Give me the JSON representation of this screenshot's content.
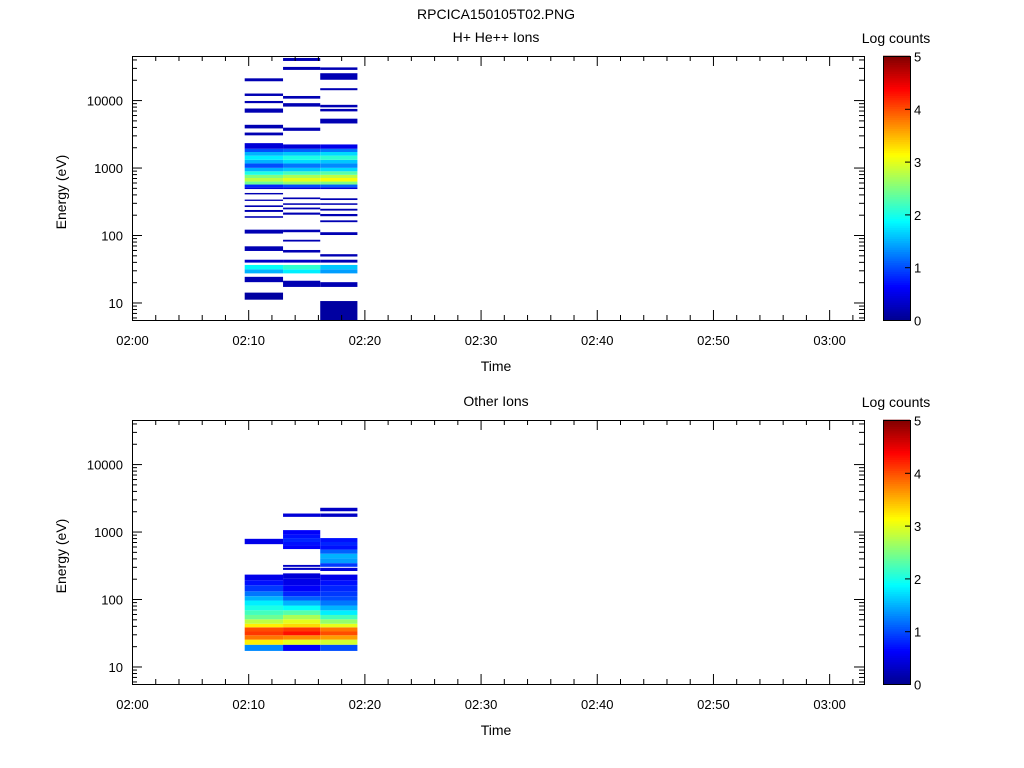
{
  "figure": {
    "title": "RPCICA150105T02.PNG"
  },
  "colors": {
    "colormap": [
      "#00008f",
      "#0000ff",
      "#0080ff",
      "#00ffff",
      "#80ff80",
      "#ffff00",
      "#ff8000",
      "#ff0000",
      "#800000"
    ]
  },
  "chart_data": [
    {
      "type": "heatmap",
      "title": "H+ He++ Ions",
      "xlabel": "Time",
      "ylabel": "Energy (eV)",
      "y_scale": "log",
      "xlim": [
        "02:00",
        "03:03"
      ],
      "ylim": [
        5.5,
        45000
      ],
      "x_ticks": [
        "02:00",
        "02:10",
        "02:20",
        "02:30",
        "02:40",
        "02:50",
        "03:00"
      ],
      "y_ticks": [
        "10",
        "100",
        "1000",
        "10000"
      ],
      "colorbar": {
        "label": "Log counts",
        "range": [
          0,
          5
        ],
        "ticks": [
          "0",
          "1",
          "2",
          "3",
          "4",
          "5"
        ]
      },
      "columns": [
        {
          "t_start": "02:09.7",
          "t_end": "02:13.0",
          "bins": [
            [
              11,
              14,
              0.1
            ],
            [
              20,
              24,
              0.2
            ],
            [
              27,
              31,
              1.5
            ],
            [
              31,
              36,
              1.9
            ],
            [
              39,
              43,
              0.3
            ],
            [
              58,
              68,
              0.2
            ],
            [
              105,
              120,
              0.2
            ],
            [
              180,
              190,
              0.2
            ],
            [
              220,
              235,
              0.2
            ],
            [
              260,
              275,
              0.2
            ],
            [
              320,
              335,
              0.2
            ],
            [
              400,
              420,
              0.2
            ],
            [
              480,
              510,
              0.4
            ],
            [
              510,
              560,
              0.8
            ],
            [
              560,
              620,
              2.4
            ],
            [
              620,
              700,
              2.8
            ],
            [
              700,
              780,
              2.5
            ],
            [
              780,
              880,
              2.0
            ],
            [
              880,
              990,
              1.5
            ],
            [
              990,
              1150,
              1.0
            ],
            [
              1150,
              1300,
              1.5
            ],
            [
              1300,
              1500,
              1.8
            ],
            [
              1500,
              1700,
              1.5
            ],
            [
              1700,
              1900,
              1.0
            ],
            [
              1900,
              2300,
              0.4
            ],
            [
              3000,
              3300,
              0.2
            ],
            [
              3800,
              4300,
              0.2
            ],
            [
              6500,
              7500,
              0.2
            ],
            [
              9000,
              9700,
              0.2
            ],
            [
              11500,
              12500,
              0.2
            ],
            [
              19000,
              21000,
              0.2
            ]
          ]
        },
        {
          "t_start": "02:13.0",
          "t_end": "02:16.2",
          "bins": [
            [
              17,
              21,
              0.2
            ],
            [
              27,
              31,
              1.8
            ],
            [
              31,
              36,
              2.1
            ],
            [
              39,
              43,
              0.3
            ],
            [
              55,
              60,
              0.2
            ],
            [
              80,
              85,
              0.2
            ],
            [
              110,
              120,
              0.2
            ],
            [
              200,
              215,
              0.2
            ],
            [
              240,
              255,
              0.2
            ],
            [
              280,
              295,
              0.2
            ],
            [
              340,
              360,
              0.2
            ],
            [
              480,
              510,
              0.4
            ],
            [
              510,
              560,
              1.0
            ],
            [
              560,
              620,
              2.6
            ],
            [
              620,
              700,
              3.0
            ],
            [
              700,
              780,
              2.7
            ],
            [
              780,
              880,
              2.2
            ],
            [
              880,
              990,
              1.6
            ],
            [
              990,
              1150,
              1.2
            ],
            [
              1150,
              1300,
              1.7
            ],
            [
              1300,
              1500,
              2.0
            ],
            [
              1500,
              1700,
              1.6
            ],
            [
              1700,
              1900,
              1.1
            ],
            [
              1900,
              2200,
              0.4
            ],
            [
              3500,
              3900,
              0.2
            ],
            [
              8000,
              9000,
              0.2
            ],
            [
              10500,
              11500,
              0.2
            ],
            [
              28000,
              31000,
              0.2
            ],
            [
              38000,
              42000,
              0.2
            ]
          ]
        },
        {
          "t_start": "02:16.2",
          "t_end": "02:19.4",
          "bins": [
            [
              5.5,
              10.5,
              0.1
            ],
            [
              17,
              20,
              0.2
            ],
            [
              27,
              31,
              1.4
            ],
            [
              31,
              36,
              1.6
            ],
            [
              39,
              43,
              0.2
            ],
            [
              48,
              52,
              0.2
            ],
            [
              100,
              110,
              0.2
            ],
            [
              155,
              165,
              0.2
            ],
            [
              190,
              205,
              0.2
            ],
            [
              230,
              245,
              0.2
            ],
            [
              280,
              295,
              0.2
            ],
            [
              330,
              350,
              0.2
            ],
            [
              480,
              510,
              0.4
            ],
            [
              510,
              560,
              1.1
            ],
            [
              560,
              620,
              2.5
            ],
            [
              620,
              700,
              3.1
            ],
            [
              700,
              780,
              2.8
            ],
            [
              780,
              880,
              2.3
            ],
            [
              880,
              990,
              1.7
            ],
            [
              990,
              1150,
              1.3
            ],
            [
              1150,
              1300,
              1.6
            ],
            [
              1300,
              1500,
              2.1
            ],
            [
              1500,
              1700,
              1.7
            ],
            [
              1700,
              1900,
              1.2
            ],
            [
              1900,
              2200,
              0.5
            ],
            [
              4500,
              5300,
              0.2
            ],
            [
              6800,
              7400,
              0.2
            ],
            [
              7800,
              8500,
              0.2
            ],
            [
              14000,
              15000,
              0.2
            ],
            [
              20000,
              25000,
              0.2
            ],
            [
              28000,
              30500,
              0.2
            ]
          ]
        }
      ]
    },
    {
      "type": "heatmap",
      "title": "Other Ions",
      "xlabel": "Time",
      "ylabel": "Energy (eV)",
      "y_scale": "log",
      "xlim": [
        "02:00",
        "03:03"
      ],
      "ylim": [
        5.5,
        45000
      ],
      "x_ticks": [
        "02:00",
        "02:10",
        "02:20",
        "02:30",
        "02:40",
        "02:50",
        "03:00"
      ],
      "y_ticks": [
        "10",
        "100",
        "1000",
        "10000"
      ],
      "colorbar": {
        "label": "Log counts",
        "range": [
          0,
          5
        ],
        "ticks": [
          "0",
          "1",
          "2",
          "3",
          "4",
          "5"
        ]
      },
      "columns": [
        {
          "t_start": "02:09.7",
          "t_end": "02:13.0",
          "bins": [
            [
              17,
              21,
              1.3
            ],
            [
              21,
              25,
              3.2
            ],
            [
              25,
              29,
              3.8
            ],
            [
              29,
              33,
              4.1
            ],
            [
              33,
              38,
              4.0
            ],
            [
              38,
              43,
              3.2
            ],
            [
              43,
              50,
              2.8
            ],
            [
              50,
              58,
              2.4
            ],
            [
              58,
              68,
              2.2
            ],
            [
              68,
              80,
              2.0
            ],
            [
              80,
              95,
              1.8
            ],
            [
              95,
              110,
              1.5
            ],
            [
              110,
              130,
              1.2
            ],
            [
              130,
              160,
              0.9
            ],
            [
              160,
              190,
              0.7
            ],
            [
              190,
              230,
              0.5
            ],
            [
              650,
              780,
              0.5
            ]
          ]
        },
        {
          "t_start": "02:13.0",
          "t_end": "02:16.2",
          "bins": [
            [
              17,
              21,
              0.6
            ],
            [
              21,
              25,
              3.0
            ],
            [
              25,
              29,
              3.7
            ],
            [
              29,
              33,
              4.3
            ],
            [
              33,
              38,
              4.1
            ],
            [
              38,
              43,
              3.3
            ],
            [
              43,
              50,
              3.0
            ],
            [
              50,
              58,
              2.7
            ],
            [
              58,
              68,
              2.3
            ],
            [
              68,
              80,
              1.9
            ],
            [
              80,
              95,
              1.5
            ],
            [
              95,
              110,
              1.1
            ],
            [
              110,
              130,
              0.8
            ],
            [
              130,
              160,
              0.6
            ],
            [
              160,
              200,
              0.5
            ],
            [
              200,
              240,
              0.4
            ],
            [
              270,
              290,
              0.3
            ],
            [
              300,
              320,
              0.3
            ],
            [
              550,
              620,
              0.6
            ],
            [
              620,
              700,
              0.7
            ],
            [
              700,
              800,
              0.8
            ],
            [
              800,
              900,
              0.7
            ],
            [
              900,
              1050,
              0.6
            ],
            [
              1650,
              1850,
              0.4
            ]
          ]
        },
        {
          "t_start": "02:16.2",
          "t_end": "02:19.4",
          "bins": [
            [
              17,
              21,
              1.0
            ],
            [
              21,
              25,
              2.9
            ],
            [
              25,
              29,
              3.6
            ],
            [
              29,
              33,
              4.0
            ],
            [
              33,
              38,
              3.8
            ],
            [
              38,
              43,
              3.0
            ],
            [
              43,
              50,
              2.6
            ],
            [
              50,
              58,
              2.2
            ],
            [
              58,
              68,
              1.8
            ],
            [
              68,
              80,
              1.5
            ],
            [
              80,
              95,
              1.2
            ],
            [
              95,
              110,
              1.0
            ],
            [
              110,
              130,
              0.9
            ],
            [
              130,
              160,
              0.8
            ],
            [
              160,
              190,
              0.7
            ],
            [
              190,
              230,
              0.5
            ],
            [
              260,
              290,
              0.4
            ],
            [
              300,
              340,
              0.9
            ],
            [
              340,
              400,
              1.4
            ],
            [
              400,
              470,
              1.5
            ],
            [
              470,
              540,
              1.1
            ],
            [
              540,
              620,
              0.7
            ],
            [
              620,
              700,
              0.8
            ],
            [
              700,
              800,
              0.7
            ],
            [
              1650,
              1850,
              0.3
            ],
            [
              2000,
              2250,
              0.3
            ]
          ]
        }
      ]
    }
  ]
}
